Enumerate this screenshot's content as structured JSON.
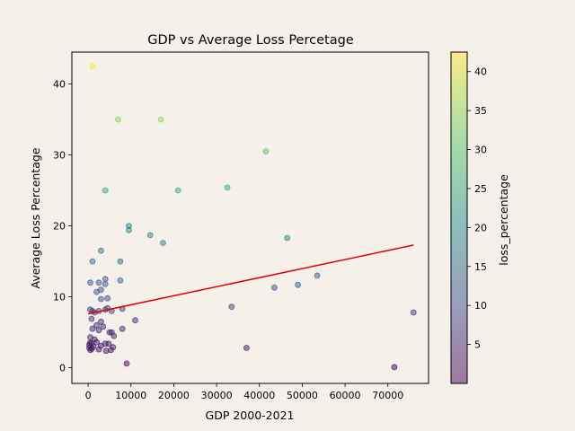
{
  "colors": {
    "background": "#f6f0ea",
    "trend_line": "#e00000",
    "colormap": [
      "#440154",
      "#3b528b",
      "#21918c",
      "#5ec962",
      "#fde725"
    ]
  },
  "chart_data": {
    "type": "scatter",
    "title": "GDP vs Average Loss Percetage",
    "xlabel": "GDP 2000-2021",
    "ylabel": "Average Loss Percentage",
    "xlim": [
      -3800,
      79500
    ],
    "ylim": [
      -2.2,
      44.5
    ],
    "xticks": [
      0,
      10000,
      20000,
      30000,
      40000,
      50000,
      60000,
      70000
    ],
    "yticks": [
      0,
      10,
      20,
      30,
      40
    ],
    "grid": false,
    "marker_alpha": 0.5,
    "colorbar": {
      "label": "loss_percentage",
      "range": [
        0,
        42.5
      ],
      "ticks": [
        5,
        10,
        15,
        20,
        25,
        30,
        35,
        40
      ]
    },
    "trend_line": {
      "x": [
        0,
        76000
      ],
      "y": [
        7.6,
        17.3
      ]
    },
    "points": [
      {
        "x": 1000,
        "y": 42.5
      },
      {
        "x": 7000,
        "y": 35
      },
      {
        "x": 17000,
        "y": 35
      },
      {
        "x": 41500,
        "y": 30.5
      },
      {
        "x": 4000,
        "y": 25
      },
      {
        "x": 21000,
        "y": 25
      },
      {
        "x": 32500,
        "y": 25.4
      },
      {
        "x": 9500,
        "y": 20
      },
      {
        "x": 9500,
        "y": 19.4
      },
      {
        "x": 14500,
        "y": 18.7
      },
      {
        "x": 17500,
        "y": 17.6
      },
      {
        "x": 46500,
        "y": 18.3
      },
      {
        "x": 3000,
        "y": 16.5
      },
      {
        "x": 1000,
        "y": 15
      },
      {
        "x": 7500,
        "y": 15
      },
      {
        "x": 53500,
        "y": 13
      },
      {
        "x": 4000,
        "y": 12.5
      },
      {
        "x": 7500,
        "y": 12.3
      },
      {
        "x": 500,
        "y": 12
      },
      {
        "x": 2500,
        "y": 12
      },
      {
        "x": 4000,
        "y": 11.8
      },
      {
        "x": 43500,
        "y": 11.3
      },
      {
        "x": 49000,
        "y": 11.7
      },
      {
        "x": 3000,
        "y": 11
      },
      {
        "x": 2000,
        "y": 10.7
      },
      {
        "x": 3000,
        "y": 9.7
      },
      {
        "x": 4500,
        "y": 9.8
      },
      {
        "x": 33500,
        "y": 8.6
      },
      {
        "x": 76000,
        "y": 7.8
      },
      {
        "x": 500,
        "y": 8.2
      },
      {
        "x": 1000,
        "y": 8
      },
      {
        "x": 1500,
        "y": 7.8
      },
      {
        "x": 2500,
        "y": 8
      },
      {
        "x": 4000,
        "y": 8.2
      },
      {
        "x": 4500,
        "y": 8.4
      },
      {
        "x": 5500,
        "y": 8
      },
      {
        "x": 8000,
        "y": 8.3
      },
      {
        "x": 11000,
        "y": 6.7
      },
      {
        "x": 800,
        "y": 6.9
      },
      {
        "x": 3000,
        "y": 6.5
      },
      {
        "x": 2000,
        "y": 6
      },
      {
        "x": 3500,
        "y": 5.8
      },
      {
        "x": 1000,
        "y": 5.5
      },
      {
        "x": 2500,
        "y": 5.3
      },
      {
        "x": 5000,
        "y": 5
      },
      {
        "x": 5500,
        "y": 5
      },
      {
        "x": 8000,
        "y": 5.5
      },
      {
        "x": 6000,
        "y": 4.5
      },
      {
        "x": 500,
        "y": 4.3
      },
      {
        "x": 1500,
        "y": 4
      },
      {
        "x": 800,
        "y": 3.5
      },
      {
        "x": 2000,
        "y": 3.6
      },
      {
        "x": 4000,
        "y": 3.4
      },
      {
        "x": 4800,
        "y": 3.4
      },
      {
        "x": 5800,
        "y": 2.9
      },
      {
        "x": 3000,
        "y": 3.1
      },
      {
        "x": 300,
        "y": 3.2
      },
      {
        "x": 300,
        "y": 2.8
      },
      {
        "x": 500,
        "y": 2.5
      },
      {
        "x": 900,
        "y": 2.7
      },
      {
        "x": 1200,
        "y": 3.0
      },
      {
        "x": 400,
        "y": 3.5
      },
      {
        "x": 2500,
        "y": 2.6
      },
      {
        "x": 4200,
        "y": 2.4
      },
      {
        "x": 5300,
        "y": 2.5
      },
      {
        "x": 37000,
        "y": 2.8
      },
      {
        "x": 9000,
        "y": 0.6
      },
      {
        "x": 71500,
        "y": 0.1
      }
    ]
  }
}
